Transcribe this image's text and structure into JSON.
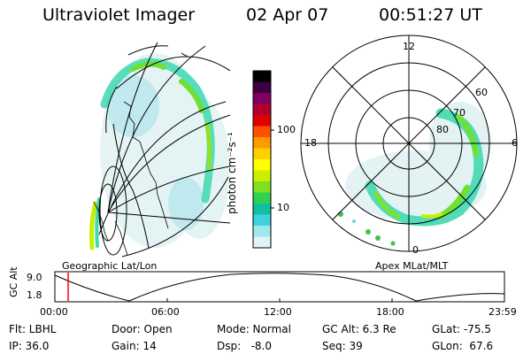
{
  "header": {
    "title": "Ultraviolet Imager",
    "date": "02 Apr 07",
    "time": "00:51:27 UT"
  },
  "colorbar": {
    "unit_label": "photon cm⁻²s⁻¹",
    "ticks": [
      "100",
      "10"
    ],
    "colors": [
      "#000000",
      "#3a0040",
      "#800060",
      "#b00030",
      "#e00000",
      "#ff5000",
      "#ff9900",
      "#ffd000",
      "#ffff00",
      "#c8f000",
      "#80e020",
      "#30d050",
      "#10c0a0",
      "#40d0e0",
      "#a0e8f0",
      "#e0f4f4"
    ]
  },
  "geo_map": {
    "label": "Geographic Lat/Lon"
  },
  "polar_map": {
    "label": "Apex MLat/MLT",
    "mlt_labels": [
      "12",
      "18",
      "6",
      "0"
    ],
    "lat_labels": [
      "60",
      "70",
      "80"
    ]
  },
  "timeline": {
    "ylabel": "GC Alt",
    "y_ticks": [
      "9.0",
      "1.8"
    ],
    "x_ticks": [
      "00:00",
      "06:00",
      "12:00",
      "18:00",
      "23:59"
    ],
    "marker_color": "#ff0000"
  },
  "info": {
    "flt": "Flt: LBHL",
    "ip": "IP: 36.0",
    "door": "Door: Open",
    "gain": "Gain: 14",
    "mode": "Mode: Normal",
    "dsp": "Dsp:   -8.0",
    "gcalt": "GC Alt: 6.3 Re",
    "seq": "Seq: 39",
    "glat": "GLat: -75.5",
    "glon": "GLon:  67.6"
  }
}
